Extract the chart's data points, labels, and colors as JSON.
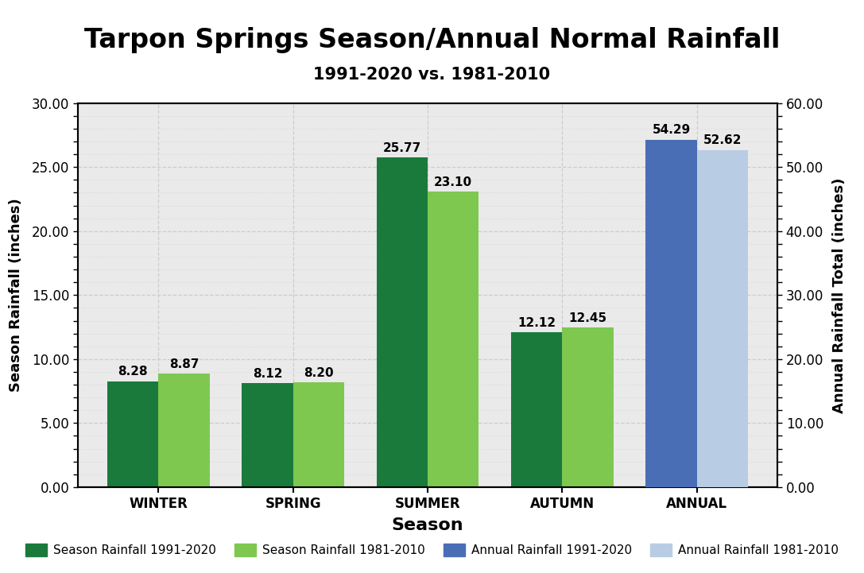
{
  "title": "Tarpon Springs Season/Annual Normal Rainfall",
  "subtitle": "1991-2020 vs. 1981-2010",
  "xlabel": "Season",
  "ylabel_left": "Season Rainfall (inches)",
  "ylabel_right": "Annual Rainfall Total (inches)",
  "seasons": [
    "WINTER",
    "SPRING",
    "SUMMER",
    "AUTUMN"
  ],
  "annual_label": "ANNUAL",
  "season_1991_2020": [
    8.28,
    8.12,
    25.77,
    12.12
  ],
  "season_1981_2010": [
    8.87,
    8.2,
    23.1,
    12.45
  ],
  "annual_1991_2020": 54.29,
  "annual_1981_2010": 52.62,
  "color_season_2020": "#1a7a3c",
  "color_season_2010": "#7ec850",
  "color_annual_2020": "#4a6eb5",
  "color_annual_2010": "#b8cce4",
  "ylim_left": [
    0,
    30
  ],
  "ylim_right": [
    0,
    60
  ],
  "yticks_left": [
    0.0,
    5.0,
    10.0,
    15.0,
    20.0,
    25.0,
    30.0
  ],
  "yticks_right": [
    0.0,
    10.0,
    20.0,
    30.0,
    40.0,
    50.0,
    60.0
  ],
  "bar_width": 0.38,
  "legend_labels": [
    "Season Rainfall 1991-2020",
    "Season Rainfall 1981-2010",
    "Annual Rainfall 1991-2020",
    "Annual Rainfall 1981-2010"
  ],
  "background_color": "#eaeaea",
  "title_fontsize": 24,
  "subtitle_fontsize": 15,
  "axis_label_fontsize": 13,
  "tick_fontsize": 12,
  "annotation_fontsize": 11,
  "legend_fontsize": 11,
  "xlabel_fontsize": 16
}
